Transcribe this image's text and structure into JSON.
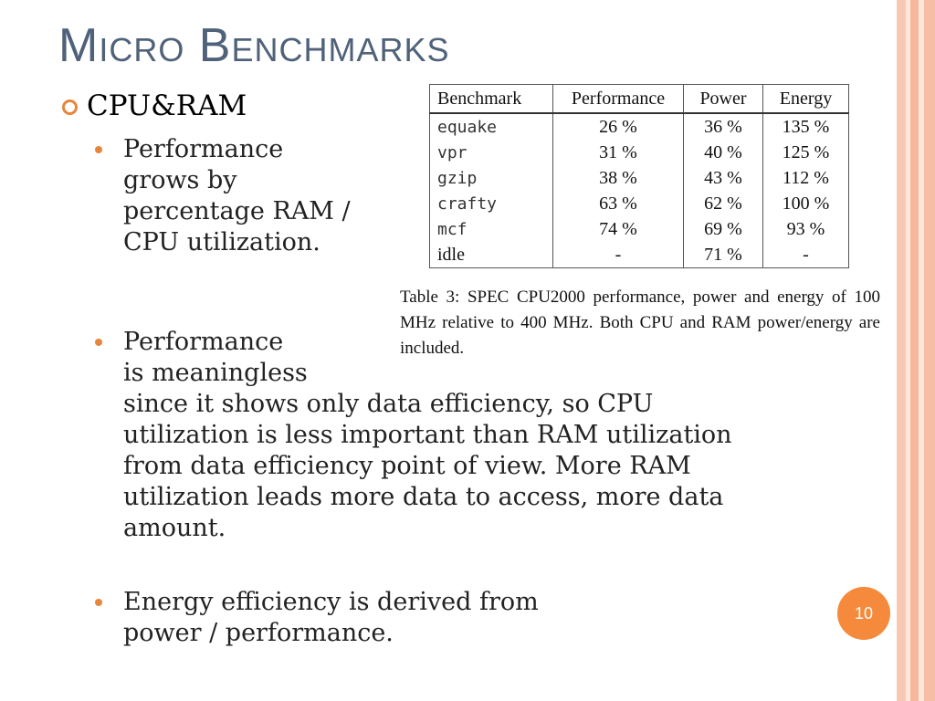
{
  "slide": {
    "title": "Micro Benchmarks",
    "level1": "CPU&RAM",
    "bullets": [
      {
        "text": "Performance grows by percentage RAM / CPU utilization."
      },
      {
        "lines": [
          "Performance",
          "is meaningless",
          "since it shows only data efficiency, so CPU",
          "utilization is less important than RAM utilization",
          "from data efficiency point of view. More RAM",
          "utilization leads more data to access, more data",
          "amount."
        ]
      },
      {
        "lines": [
          "Energy efficiency is derived from",
          "power / performance."
        ]
      }
    ],
    "page_number": "10"
  },
  "table": {
    "headers": [
      "Benchmark",
      "Performance",
      "Power",
      "Energy"
    ],
    "rows": [
      [
        "equake",
        "26 %",
        "36 %",
        "135 %"
      ],
      [
        "vpr",
        "31 %",
        "40 %",
        "125 %"
      ],
      [
        "gzip",
        "38 %",
        "43 %",
        "112 %"
      ],
      [
        "crafty",
        "63 %",
        "62 %",
        "100 %"
      ],
      [
        "mcf",
        "74 %",
        "69 %",
        "93 %"
      ],
      [
        "idle",
        "-",
        "71 %",
        "-"
      ]
    ],
    "caption": "Table 3: SPEC CPU2000 performance, power and energy of 100 MHz relative to 400 MHz. Both CPU and RAM power/energy are included."
  },
  "colors": {
    "title": "#4f6279",
    "accent": "#f58a3c",
    "bullet": "#e8853b"
  }
}
